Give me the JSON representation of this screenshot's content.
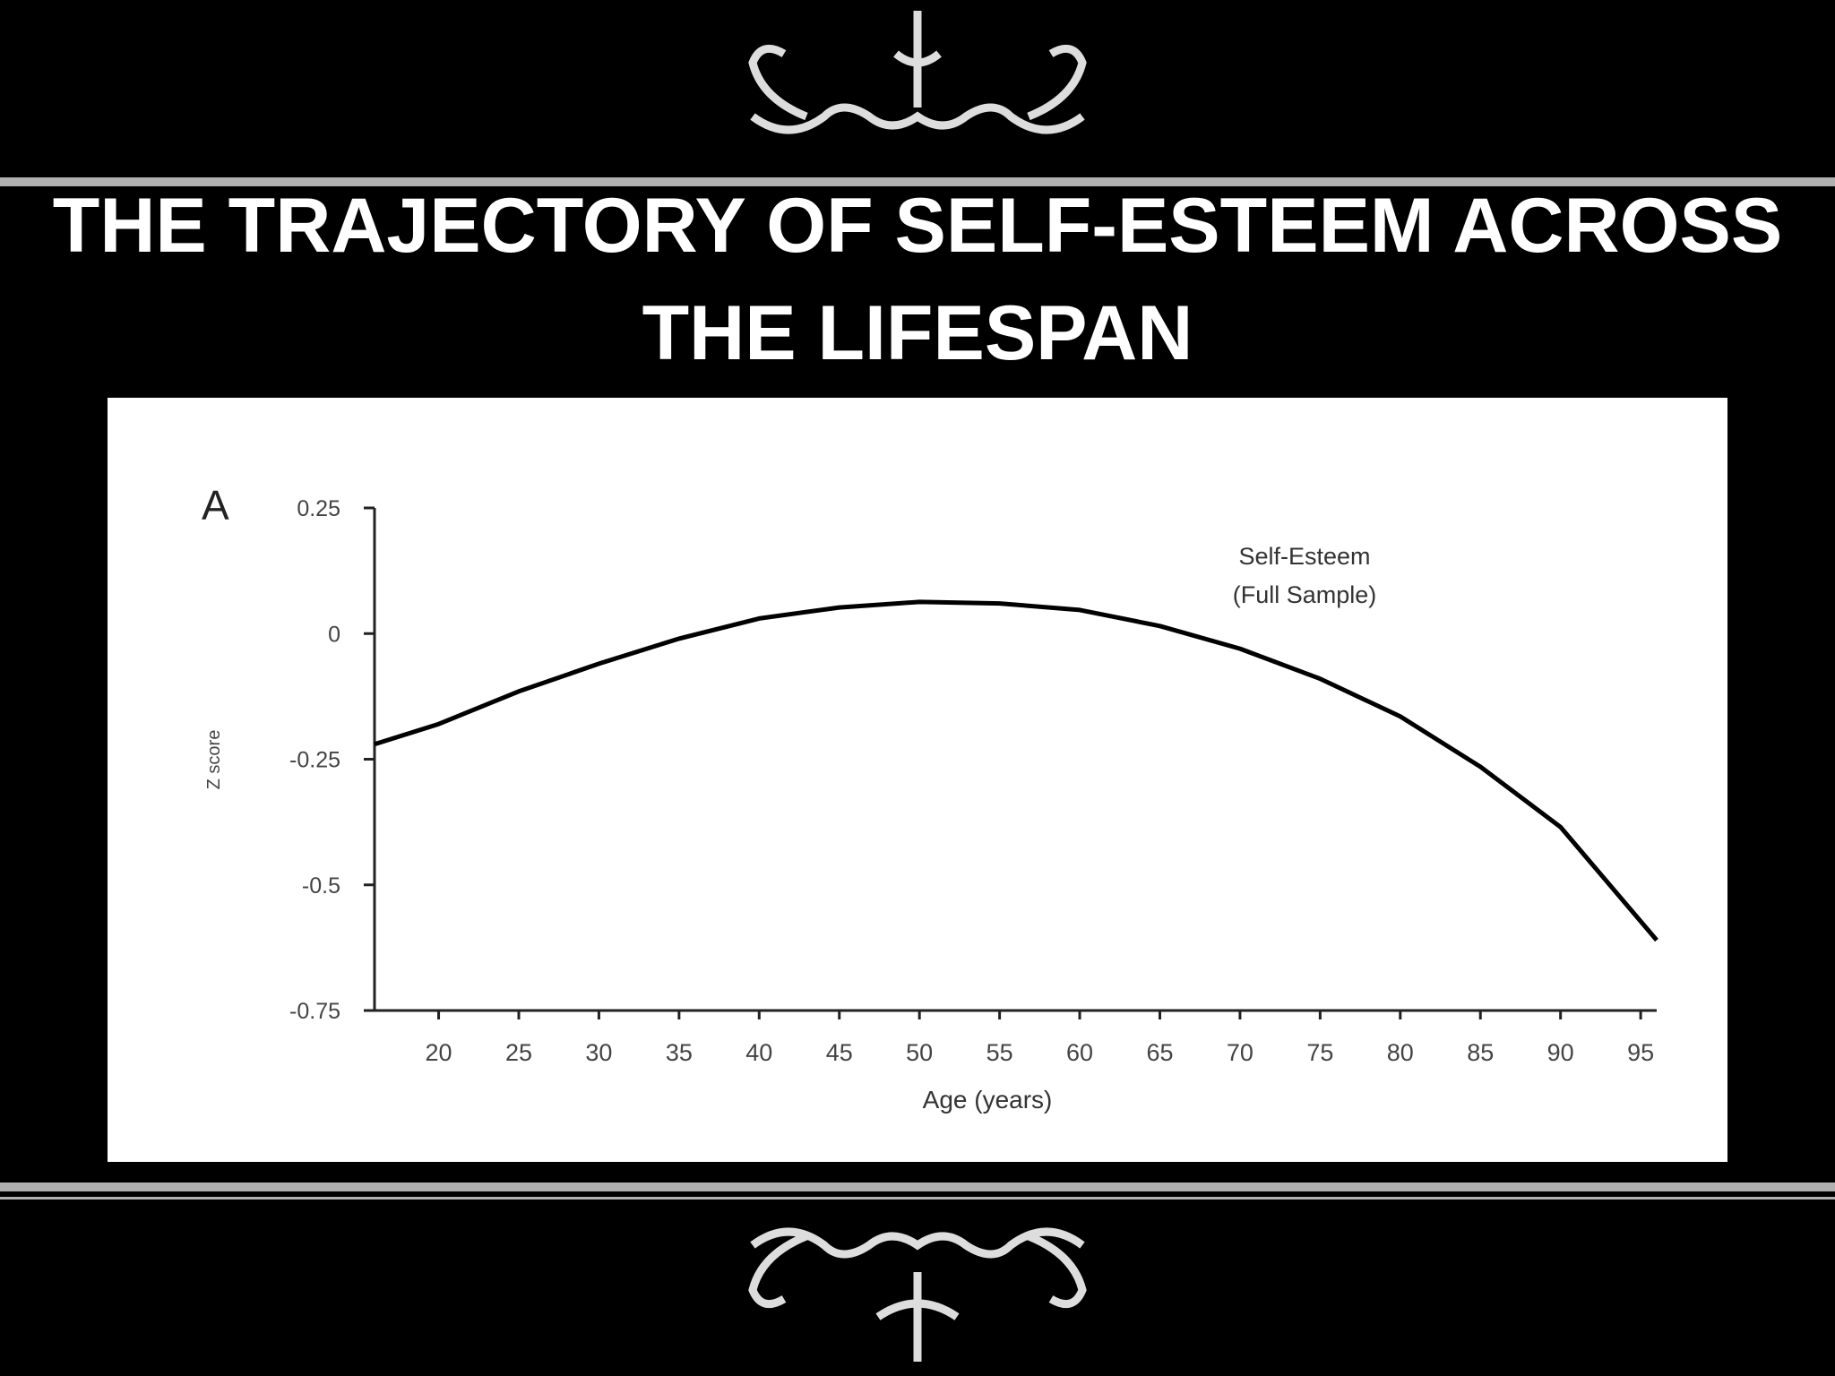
{
  "chart_data": {
    "type": "line",
    "title": "THE TRAJECTORY OF SELF-ESTEEM ACROSS THE LIFESPAN",
    "panel_label": "A",
    "y_label": "Z score",
    "x_label": "Age (years)",
    "annotation": [
      "Self-Esteem",
      "(Full Sample)"
    ],
    "x": [
      16,
      20,
      25,
      30,
      35,
      40,
      45,
      50,
      55,
      60,
      65,
      70,
      75,
      80,
      85,
      90,
      96
    ],
    "values": [
      -0.22,
      -0.18,
      -0.115,
      -0.06,
      -0.01,
      0.03,
      0.052,
      0.063,
      0.06,
      0.047,
      0.015,
      -0.03,
      -0.09,
      -0.165,
      -0.265,
      -0.385,
      -0.61
    ],
    "color": "#000000",
    "xlim": [
      16,
      96
    ],
    "ylim": [
      -0.75,
      0.25
    ],
    "xticks": [
      20,
      25,
      30,
      35,
      40,
      45,
      50,
      55,
      60,
      65,
      70,
      75,
      80,
      85,
      90,
      95
    ],
    "yticks": [
      0.25,
      0,
      -0.25,
      -0.5,
      -0.75
    ]
  }
}
